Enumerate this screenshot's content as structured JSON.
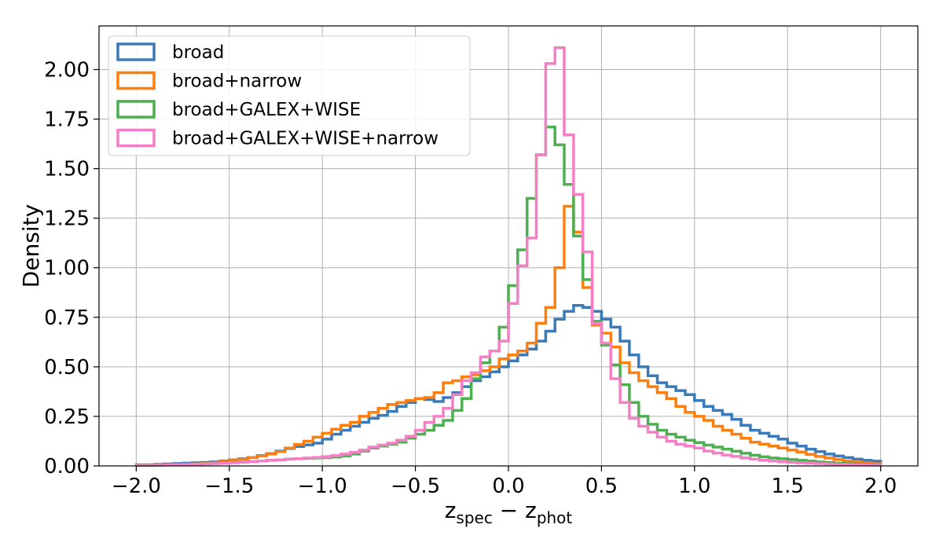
{
  "chart_data": {
    "type": "histogram",
    "ylabel": "Density",
    "xlabel": {
      "base": "z",
      "sub1": "spec",
      "op": " − ",
      "sub2": "phot"
    },
    "xlim": [
      -2.2,
      2.2
    ],
    "ylim": [
      0,
      2.22
    ],
    "grid": true,
    "legend_position": "upper-left",
    "bin_start": -2.0,
    "bin_width": 0.05,
    "x_ticks": [
      -2.0,
      -1.5,
      -1.0,
      -0.5,
      0.0,
      0.5,
      1.0,
      1.5,
      2.0
    ],
    "x_tick_labels": [
      "−2.0",
      "−1.5",
      "−1.0",
      "−0.5",
      "0.0",
      "0.5",
      "1.0",
      "1.5",
      "2.0"
    ],
    "y_ticks": [
      0.0,
      0.25,
      0.5,
      0.75,
      1.0,
      1.25,
      1.5,
      1.75,
      2.0
    ],
    "y_tick_labels": [
      "0.00",
      "0.25",
      "0.50",
      "0.75",
      "1.00",
      "1.25",
      "1.50",
      "1.75",
      "2.00"
    ],
    "series": [
      {
        "name": "broad",
        "color": "#3a7ab8",
        "values": [
          0.006,
          0.006,
          0.008,
          0.01,
          0.012,
          0.014,
          0.016,
          0.018,
          0.021,
          0.025,
          0.03,
          0.036,
          0.043,
          0.052,
          0.062,
          0.075,
          0.088,
          0.098,
          0.106,
          0.115,
          0.135,
          0.16,
          0.18,
          0.2,
          0.22,
          0.24,
          0.255,
          0.275,
          0.3,
          0.32,
          0.34,
          0.335,
          0.325,
          0.345,
          0.37,
          0.4,
          0.43,
          0.45,
          0.475,
          0.5,
          0.53,
          0.56,
          0.59,
          0.63,
          0.68,
          0.74,
          0.78,
          0.81,
          0.8,
          0.78,
          0.74,
          0.7,
          0.63,
          0.56,
          0.5,
          0.455,
          0.42,
          0.4,
          0.38,
          0.36,
          0.33,
          0.3,
          0.28,
          0.26,
          0.235,
          0.205,
          0.18,
          0.165,
          0.15,
          0.135,
          0.115,
          0.1,
          0.085,
          0.072,
          0.06,
          0.05,
          0.042,
          0.034,
          0.028,
          0.024
        ]
      },
      {
        "name": "broad+narrow",
        "color": "#ff7f0e",
        "values": [
          0.004,
          0.004,
          0.005,
          0.006,
          0.007,
          0.009,
          0.011,
          0.014,
          0.018,
          0.022,
          0.028,
          0.034,
          0.042,
          0.05,
          0.06,
          0.072,
          0.09,
          0.108,
          0.125,
          0.145,
          0.165,
          0.185,
          0.205,
          0.22,
          0.25,
          0.27,
          0.29,
          0.31,
          0.32,
          0.33,
          0.34,
          0.345,
          0.37,
          0.42,
          0.43,
          0.45,
          0.46,
          0.48,
          0.5,
          0.54,
          0.56,
          0.58,
          0.62,
          0.72,
          0.8,
          1.0,
          1.31,
          1.18,
          0.9,
          0.71,
          0.67,
          0.6,
          0.52,
          0.47,
          0.43,
          0.4,
          0.37,
          0.34,
          0.3,
          0.27,
          0.25,
          0.23,
          0.2,
          0.18,
          0.16,
          0.14,
          0.12,
          0.11,
          0.1,
          0.09,
          0.08,
          0.07,
          0.058,
          0.048,
          0.04,
          0.032,
          0.025,
          0.02,
          0.016,
          0.012
        ]
      },
      {
        "name": "broad+GALEX+WISE",
        "color": "#4caf50",
        "values": [
          0.004,
          0.004,
          0.005,
          0.006,
          0.007,
          0.008,
          0.01,
          0.011,
          0.013,
          0.015,
          0.018,
          0.02,
          0.022,
          0.025,
          0.028,
          0.031,
          0.034,
          0.036,
          0.038,
          0.04,
          0.042,
          0.045,
          0.05,
          0.06,
          0.075,
          0.09,
          0.1,
          0.11,
          0.12,
          0.14,
          0.16,
          0.18,
          0.205,
          0.23,
          0.28,
          0.34,
          0.44,
          0.52,
          0.58,
          0.7,
          0.91,
          1.09,
          1.35,
          1.57,
          1.71,
          1.62,
          1.42,
          1.16,
          0.94,
          0.73,
          0.61,
          0.51,
          0.41,
          0.32,
          0.25,
          0.21,
          0.18,
          0.16,
          0.145,
          0.13,
          0.118,
          0.105,
          0.095,
          0.085,
          0.074,
          0.064,
          0.054,
          0.046,
          0.04,
          0.036,
          0.032,
          0.028,
          0.024,
          0.02,
          0.017,
          0.014,
          0.012,
          0.01,
          0.008,
          0.006
        ]
      },
      {
        "name": "broad+GALEX+WISE+narrow",
        "color": "#f47fc4",
        "values": [
          0.003,
          0.003,
          0.004,
          0.005,
          0.006,
          0.007,
          0.009,
          0.01,
          0.012,
          0.014,
          0.016,
          0.019,
          0.022,
          0.025,
          0.028,
          0.031,
          0.034,
          0.037,
          0.04,
          0.043,
          0.047,
          0.052,
          0.06,
          0.068,
          0.08,
          0.095,
          0.105,
          0.115,
          0.13,
          0.15,
          0.18,
          0.22,
          0.25,
          0.29,
          0.36,
          0.43,
          0.47,
          0.55,
          0.58,
          0.63,
          0.82,
          1.01,
          1.15,
          1.57,
          2.03,
          2.11,
          1.67,
          1.37,
          1.08,
          0.72,
          0.62,
          0.44,
          0.32,
          0.24,
          0.2,
          0.17,
          0.145,
          0.125,
          0.11,
          0.1,
          0.09,
          0.075,
          0.065,
          0.055,
          0.048,
          0.04,
          0.034,
          0.029,
          0.025,
          0.021,
          0.018,
          0.016,
          0.014,
          0.012,
          0.01,
          0.008,
          0.007,
          0.006,
          0.005,
          0.004
        ]
      }
    ]
  }
}
